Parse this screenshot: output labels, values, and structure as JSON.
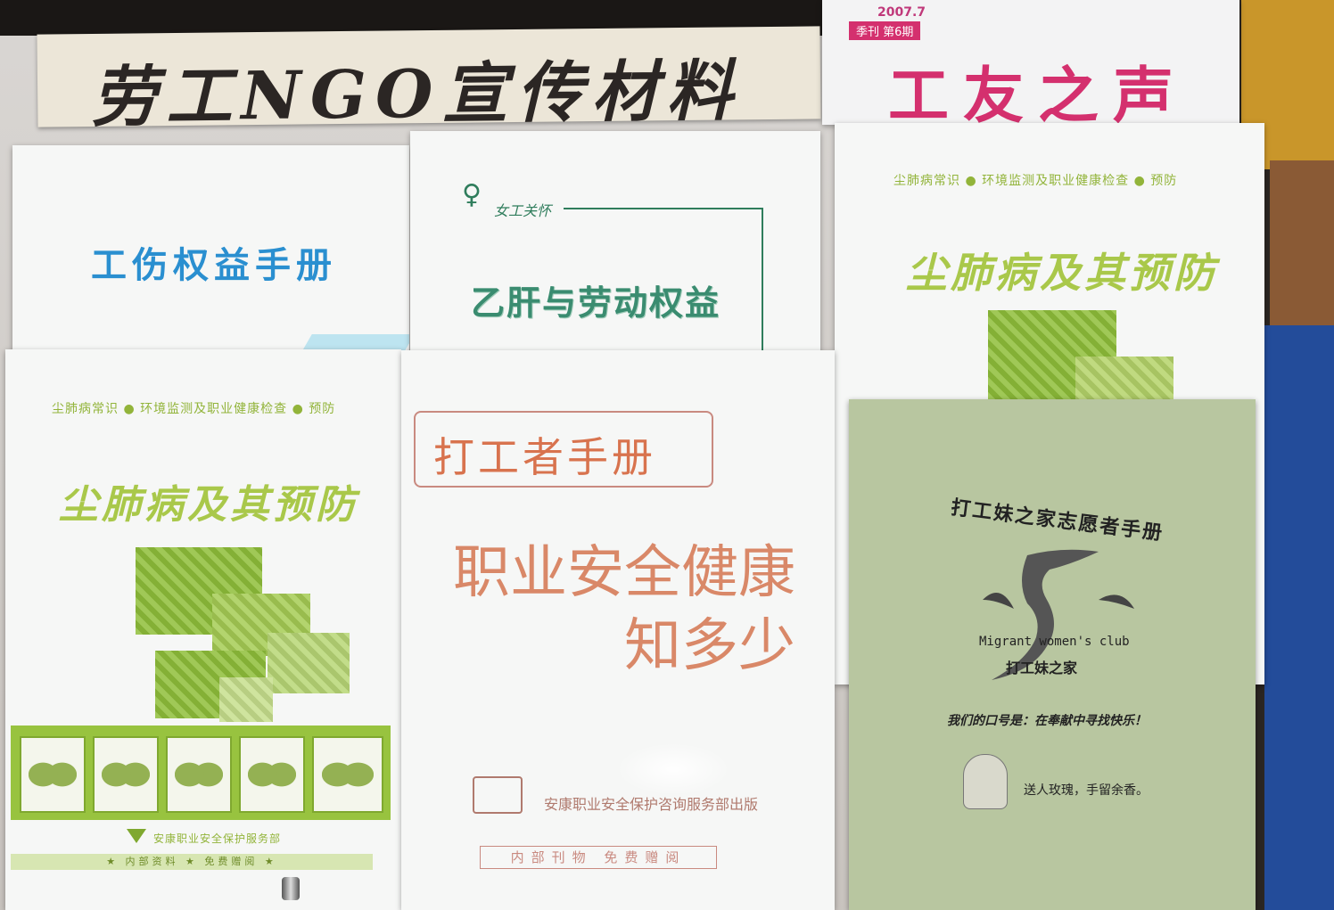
{
  "banner": {
    "title": "劳工NGO宣传材料"
  },
  "magazine": {
    "date": "2007.7",
    "issue": "季刊 第6期",
    "title": "工友之声"
  },
  "booklet_injury": {
    "title": "工伤权益手册"
  },
  "booklet_hepatitis": {
    "logo_text": "女工关怀",
    "title": "乙肝与劳动权益"
  },
  "booklet_pneumo_top": {
    "subtitle": "尘肺病常识 ● 环境监测及职业健康检查 ● 预防",
    "title": "尘肺病及其预防"
  },
  "booklet_pneumo_left": {
    "subtitle": "尘肺病常识 ● 环境监测及职业健康检查 ● 预防",
    "title": "尘肺病及其预防",
    "publisher": "安康职业安全保护服务部",
    "footer": "★ 内部资料 ★ 免费赠阅 ★"
  },
  "booklet_worker": {
    "title": "打工者手册",
    "headline_1": "职业安全健康",
    "headline_2": "知多少",
    "publisher": "安康职业安全保护咨询服务部出版",
    "footer": "内部刊物 免费赠阅"
  },
  "booklet_migrant": {
    "title": "打工妹之家志愿者手册",
    "club_en": "Migrant women's club",
    "club_cn": "打工妹之家",
    "slogan": "我们的口号是：在奉献中寻找快乐！",
    "motto": "送人玫瑰，手留余香。"
  },
  "colors": {
    "banner_ink": "#2b2624",
    "magazine_pink": "#d4306e",
    "injury_blue": "#2a8fd0",
    "hepatitis_green": "#2f7d5c",
    "pneumo_green": "#a9c84a",
    "worker_orange": "#d8734e",
    "migrant_paper": "#b8c6a0"
  }
}
